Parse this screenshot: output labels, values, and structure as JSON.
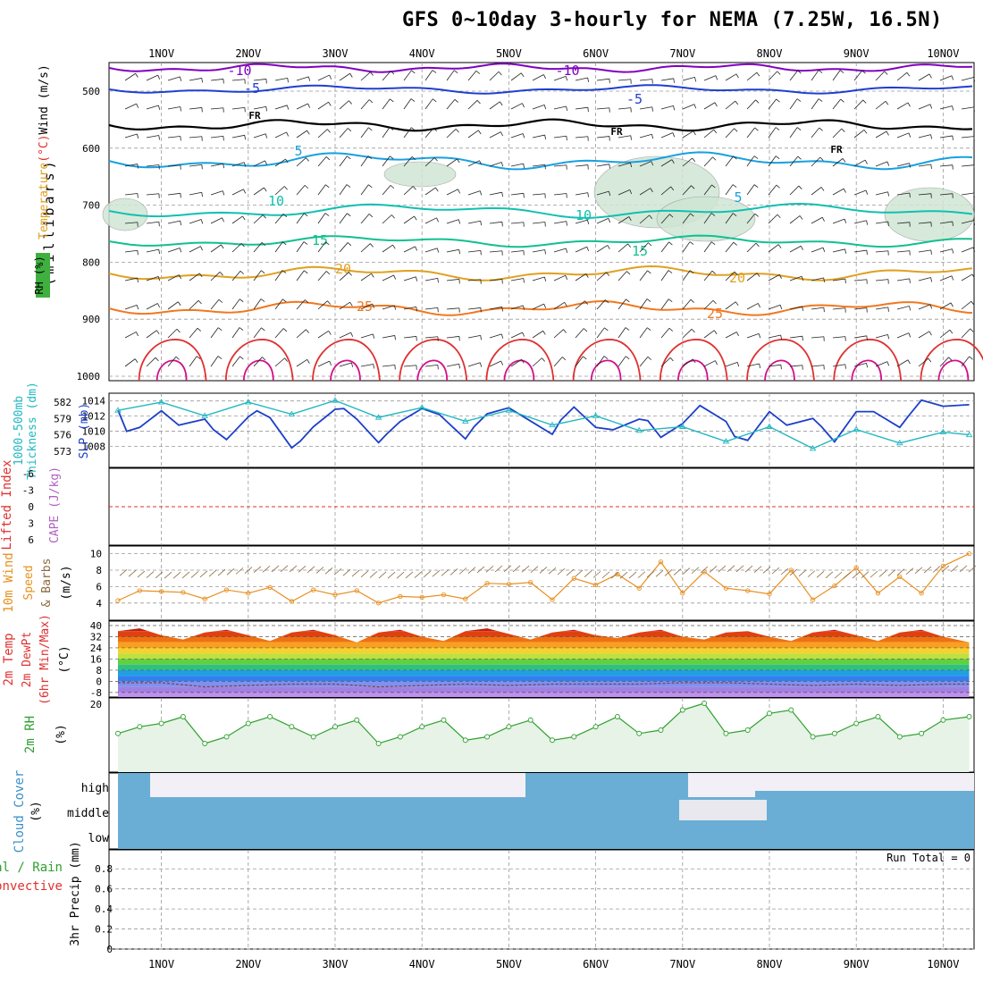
{
  "title": "GFS 0~10day 3-hourly for NEMA (7.25W, 16.5N)",
  "dates": [
    "1NOV",
    "2NOV",
    "3NOV",
    "4NOV",
    "5NOV",
    "6NOV",
    "7NOV",
    "8NOV",
    "9NOV",
    "10NOV"
  ],
  "colors": {
    "purple": "#8000c0",
    "blue": "#1f3fd0",
    "cyan": "#18a0e0",
    "teal1": "#10c0b0",
    "teal2": "#10c090",
    "orange1": "#e0a020",
    "orange2": "#f07820",
    "red": "#e03030",
    "magenta": "#d0108a",
    "rhfill": "#cfe6d4",
    "slp": "#1c3fc8",
    "thick": "#20b8c0",
    "wind10": "#e89020",
    "rh2m": "#30a030",
    "cloud": "#6aaed6",
    "grid": "#999999"
  },
  "panels": {
    "upper": {
      "ylabel_unit": "(millibars)",
      "ylabel_parts": [
        "Temperature",
        "(°C)",
        "Wind",
        "(m/s)"
      ],
      "rh_label": "RH (%)",
      "yticks": [
        "500",
        "600",
        "700",
        "800",
        "900",
        "1000"
      ],
      "contour_labels": [
        {
          "text": "-10"
        },
        {
          "text": "-10"
        },
        {
          "text": "-5"
        },
        {
          "text": "-5"
        },
        {
          "text": "FR"
        },
        {
          "text": "FR"
        },
        {
          "text": "FR"
        },
        {
          "text": "5"
        },
        {
          "text": "5"
        },
        {
          "text": "10"
        },
        {
          "text": "10"
        },
        {
          "text": "15"
        },
        {
          "text": "15"
        },
        {
          "text": "20"
        },
        {
          "text": "20"
        },
        {
          "text": "25"
        },
        {
          "text": "25"
        }
      ]
    },
    "slp": {
      "ylabel_left": [
        "1000-500mb",
        "Thickness (dm)"
      ],
      "ylabel_right": "SLP (mb)",
      "left_ticks": [
        "582",
        "579",
        "576",
        "573"
      ],
      "right_ticks": [
        "1014",
        "1012",
        "1010",
        "1008"
      ]
    },
    "cape": {
      "ylabel_left": "Lifted Index",
      "ylabel_right": "CAPE (J/kg)",
      "ticks": [
        "-6",
        "-3",
        "0",
        "3",
        "6"
      ]
    },
    "wind": {
      "ylabel": [
        "10m Wind",
        "Speed",
        "& Barbs",
        "(m/s)"
      ],
      "ticks": [
        "4",
        "6",
        "8",
        "10"
      ]
    },
    "temp": {
      "ylabel": [
        "2m Temp",
        "2m DewPt",
        "(6hr Min/Max)",
        "(°C)"
      ],
      "ticks": [
        "40",
        "32",
        "24",
        "16",
        "8",
        "0",
        "-8"
      ]
    },
    "rh": {
      "ylabel": [
        "2m RH",
        "(%)"
      ],
      "ticks": [
        "20"
      ]
    },
    "cloud": {
      "ylabel": [
        "Cloud Cover",
        "(%)"
      ],
      "levels": [
        "high",
        "middle",
        "low"
      ]
    },
    "precip": {
      "ylabel_left": [
        "Total / Rain",
        "Convective"
      ],
      "ylabel_right": [
        "3hr Precip (mm)"
      ],
      "ticks": [
        "0.8",
        "0.6",
        "0.4",
        "0.2",
        "0"
      ],
      "run_total": "Run Total = 0"
    }
  },
  "chart_data": [
    {
      "type": "line",
      "name": "SLP",
      "unit": "mb",
      "x_days": [
        0.5,
        0.6,
        0.75,
        1.0,
        1.2,
        1.5,
        1.6,
        1.75,
        2.0,
        2.1,
        2.25,
        2.5,
        2.6,
        2.75,
        3.0,
        3.1,
        3.25,
        3.5,
        3.6,
        3.75,
        4.0,
        4.2,
        4.5,
        4.6,
        4.75,
        5.0,
        5.2,
        5.5,
        5.6,
        5.75,
        6.0,
        6.2,
        6.5,
        6.6,
        6.75,
        7.0,
        7.2,
        7.5,
        7.6,
        7.75,
        8.0,
        8.2,
        8.5,
        8.6,
        8.75,
        9.0,
        9.2,
        9.5,
        9.6,
        9.75,
        10.0,
        10.3
      ],
      "values": [
        1012.8,
        1010.0,
        1010.5,
        1012.7,
        1010.8,
        1011.6,
        1010.2,
        1008.9,
        1011.9,
        1012.7,
        1011.8,
        1007.8,
        1008.7,
        1010.6,
        1012.9,
        1013.0,
        1011.6,
        1008.5,
        1009.7,
        1011.3,
        1013.0,
        1012.2,
        1009.0,
        1010.6,
        1012.3,
        1013.1,
        1011.7,
        1009.6,
        1011.5,
        1013.2,
        1010.5,
        1010.2,
        1011.6,
        1011.4,
        1009.2,
        1011.0,
        1013.4,
        1011.3,
        1009.3,
        1008.8,
        1012.6,
        1010.8,
        1011.7,
        1010.6,
        1008.6,
        1012.6,
        1012.6,
        1010.5,
        1012.0,
        1014.1,
        1013.3,
        1013.5
      ]
    },
    {
      "type": "line",
      "name": "1000-500mb Thickness",
      "unit": "dm",
      "x_days": [
        0.5,
        1.0,
        1.5,
        2.0,
        2.5,
        3.0,
        3.5,
        4.0,
        4.5,
        5.0,
        5.5,
        6.0,
        6.5,
        7.0,
        7.5,
        8.0,
        8.5,
        9.0,
        9.5,
        10.0,
        10.3
      ],
      "values": [
        580.5,
        582.0,
        579.5,
        582.0,
        579.8,
        582.3,
        579.2,
        581.0,
        578.5,
        580.5,
        577.8,
        579.5,
        576.8,
        577.5,
        574.8,
        577.5,
        573.5,
        577.0,
        574.5,
        576.5,
        576.0
      ]
    },
    {
      "type": "line",
      "name": "10m Wind Speed",
      "unit": "m/s",
      "x_days": [
        0.5,
        0.75,
        1.0,
        1.25,
        1.5,
        1.75,
        2.0,
        2.25,
        2.5,
        2.75,
        3.0,
        3.25,
        3.5,
        3.75,
        4.0,
        4.25,
        4.5,
        4.75,
        5.0,
        5.25,
        5.5,
        5.75,
        6.0,
        6.25,
        6.5,
        6.75,
        7.0,
        7.25,
        7.5,
        7.75,
        8.0,
        8.25,
        8.5,
        8.75,
        9.0,
        9.25,
        9.5,
        9.75,
        10.0,
        10.3
      ],
      "values": [
        4.3,
        5.5,
        5.4,
        5.3,
        4.5,
        5.6,
        5.2,
        5.9,
        4.2,
        5.6,
        5.0,
        5.5,
        4.0,
        4.8,
        4.7,
        5.0,
        4.5,
        6.4,
        6.3,
        6.5,
        4.4,
        7.0,
        6.2,
        7.5,
        5.8,
        9.0,
        5.2,
        7.8,
        5.8,
        5.5,
        5.1,
        8.0,
        4.4,
        6.1,
        8.3,
        5.2,
        7.2,
        5.2,
        8.5,
        10.0
      ]
    },
    {
      "type": "area",
      "name": "2m Temp",
      "unit": "°C",
      "x_days": [
        0.5,
        0.75,
        1.0,
        1.25,
        1.5,
        1.75,
        2.0,
        2.25,
        2.5,
        2.75,
        3.0,
        3.25,
        3.5,
        3.75,
        4.0,
        4.25,
        4.5,
        4.75,
        5.0,
        5.25,
        5.5,
        5.75,
        6.0,
        6.25,
        6.5,
        6.75,
        7.0,
        7.25,
        7.5,
        7.75,
        8.0,
        8.25,
        8.5,
        8.75,
        9.0,
        9.25,
        9.5,
        9.75,
        10.0,
        10.3
      ],
      "values": [
        36,
        38,
        33,
        30,
        35,
        37,
        33,
        29,
        35,
        37,
        33,
        28,
        35,
        37,
        32,
        29,
        36,
        38,
        34,
        30,
        35,
        37,
        33,
        31,
        35,
        37,
        32,
        30,
        35,
        36,
        32,
        29,
        35,
        37,
        33,
        29,
        35,
        37,
        32,
        28
      ]
    },
    {
      "type": "line",
      "name": "2m DewPt",
      "unit": "°C",
      "x_days": [
        0.5,
        1.0,
        1.5,
        2.0,
        2.5,
        3.0,
        3.5,
        4.0,
        4.5,
        5.0,
        5.5,
        6.0,
        6.5,
        7.0,
        7.5,
        8.0,
        8.5,
        9.0,
        9.5,
        10.0,
        10.3
      ],
      "values": [
        -1,
        -1,
        -4,
        -3,
        -2,
        -2,
        -4,
        -3,
        -2,
        -3,
        -2,
        -2,
        -2,
        -1,
        -1,
        -2,
        -3,
        -2,
        -3,
        -2,
        -2
      ]
    },
    {
      "type": "area",
      "name": "2m RH",
      "unit": "%",
      "x_days": [
        0.5,
        0.75,
        1.0,
        1.25,
        1.5,
        1.75,
        2.0,
        2.25,
        2.5,
        2.75,
        3.0,
        3.25,
        3.5,
        3.75,
        4.0,
        4.25,
        4.5,
        4.75,
        5.0,
        5.25,
        5.5,
        5.75,
        6.0,
        6.25,
        6.5,
        6.75,
        7.0,
        7.25,
        7.5,
        7.75,
        8.0,
        8.25,
        8.5,
        8.75,
        9.0,
        9.25,
        9.5,
        9.75,
        10.0,
        10.3
      ],
      "values": [
        11,
        13,
        14,
        16,
        8,
        10,
        14,
        16,
        13,
        10,
        13,
        15,
        8,
        10,
        13,
        15,
        9,
        10,
        13,
        15,
        9,
        10,
        13,
        16,
        11,
        12,
        18,
        20,
        11,
        12,
        17,
        18,
        10,
        11,
        14,
        16,
        10,
        11,
        15,
        16
      ]
    }
  ]
}
